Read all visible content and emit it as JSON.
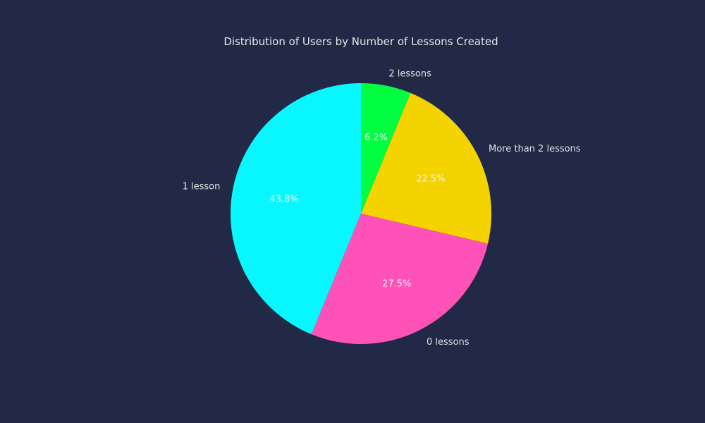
{
  "chart_data": {
    "type": "pie",
    "title": "Distribution of Users by Number of Lessons Created",
    "slices": [
      {
        "label": "2 lessons",
        "value": 6.2,
        "pct_label": "6.2%",
        "color": "#00ff41"
      },
      {
        "label": "More than 2 lessons",
        "value": 22.5,
        "pct_label": "22.5%",
        "color": "#f5d300"
      },
      {
        "label": "0 lessons",
        "value": 27.5,
        "pct_label": "27.5%",
        "color": "#ff52b9"
      },
      {
        "label": "1 lesson",
        "value": 43.8,
        "pct_label": "43.8%",
        "color": "#08f7fe"
      }
    ],
    "start_angle_deg": 90,
    "direction": "clockwise"
  },
  "colors": {
    "background": "#212946",
    "text": "#e0e0e0"
  }
}
